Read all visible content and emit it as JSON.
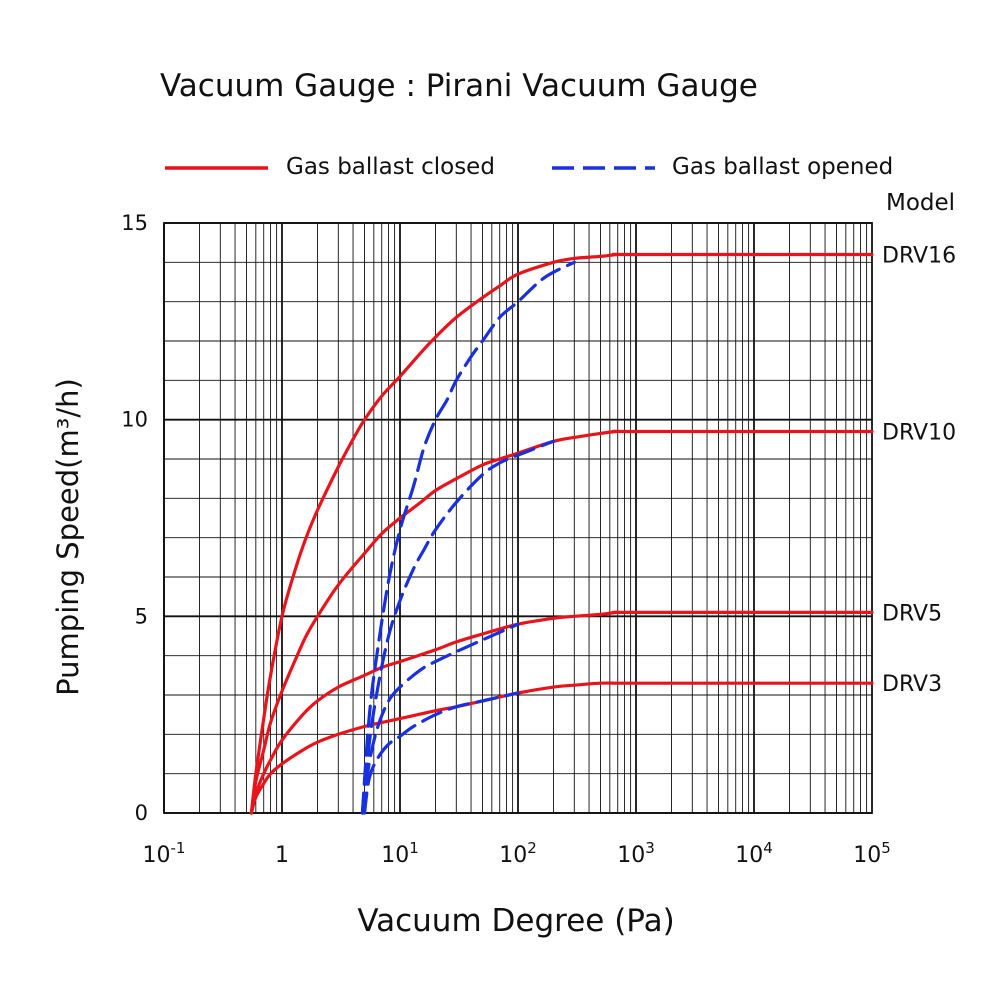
{
  "chart_data": {
    "type": "line",
    "title": "Vacuum Gauge : Pirani Vacuum Gauge",
    "xlabel": "Vacuum Degree (Pa)",
    "ylabel": "Pumping Speed(m³/h)",
    "x_scale": "log",
    "xlim": [
      0.1,
      100000
    ],
    "ylim": [
      0,
      15
    ],
    "x_ticks": [
      {
        "value": 0.1,
        "base": "10",
        "exp": "-1"
      },
      {
        "value": 1,
        "base": "1",
        "exp": ""
      },
      {
        "value": 10,
        "base": "10",
        "exp": "1"
      },
      {
        "value": 100,
        "base": "10",
        "exp": "2"
      },
      {
        "value": 1000,
        "base": "10",
        "exp": "3"
      },
      {
        "value": 10000,
        "base": "10",
        "exp": "4"
      },
      {
        "value": 100000,
        "base": "10",
        "exp": "5"
      }
    ],
    "y_ticks": [
      "0",
      "5",
      "10",
      "15"
    ],
    "grid": true,
    "legend": {
      "placement": "top",
      "closed_label": "Gas ballast closed",
      "opened_label": "Gas ballast opened",
      "closed_color": "#e8141b",
      "opened_color": "#1830e0"
    },
    "model_header": "Model",
    "series": [
      {
        "name": "DRV16",
        "style": "closed",
        "x": [
          0.55,
          0.6,
          0.7,
          0.8,
          1,
          1.3,
          1.6,
          2,
          3,
          4,
          5,
          7,
          10,
          15,
          20,
          30,
          50,
          70,
          100,
          200,
          300,
          500,
          700,
          1000,
          100000
        ],
        "y": [
          0,
          1.0,
          2.4,
          3.5,
          5.0,
          6.2,
          7.0,
          7.7,
          8.8,
          9.5,
          10.0,
          10.6,
          11.1,
          11.7,
          12.1,
          12.6,
          13.1,
          13.4,
          13.7,
          14.0,
          14.1,
          14.15,
          14.2,
          14.2,
          14.2
        ]
      },
      {
        "name": "DRV16",
        "style": "opened",
        "x": [
          4.8,
          5.5,
          6.5,
          8,
          10,
          13,
          16,
          20,
          25,
          30,
          40,
          50,
          70,
          100,
          150,
          200,
          300
        ],
        "y": [
          0,
          2.5,
          4.2,
          5.9,
          7.2,
          8.3,
          9.3,
          10.0,
          10.5,
          11.0,
          11.6,
          12.0,
          12.6,
          13.0,
          13.5,
          13.75,
          14.0
        ]
      },
      {
        "name": "DRV10",
        "style": "closed",
        "x": [
          0.55,
          0.6,
          0.7,
          0.8,
          1,
          1.3,
          1.6,
          2,
          3,
          5,
          7,
          10,
          15,
          20,
          30,
          50,
          70,
          100,
          200,
          300,
          500,
          700,
          1000,
          100000
        ],
        "y": [
          0,
          0.8,
          1.6,
          2.3,
          3.1,
          3.9,
          4.5,
          5.0,
          5.8,
          6.6,
          7.1,
          7.5,
          7.9,
          8.2,
          8.5,
          8.85,
          9.0,
          9.15,
          9.45,
          9.55,
          9.65,
          9.7,
          9.7,
          9.7
        ]
      },
      {
        "name": "DRV10",
        "style": "opened",
        "x": [
          4.8,
          5.5,
          6.5,
          8,
          10,
          13,
          16,
          20,
          30,
          50,
          70,
          100,
          200
        ],
        "y": [
          0,
          1.8,
          3.2,
          4.5,
          5.4,
          6.2,
          6.7,
          7.2,
          7.9,
          8.6,
          8.9,
          9.1,
          9.45
        ]
      },
      {
        "name": "DRV5",
        "style": "closed",
        "x": [
          0.55,
          0.6,
          0.7,
          0.8,
          1,
          1.5,
          2,
          3,
          5,
          7,
          10,
          20,
          30,
          50,
          100,
          200,
          300,
          500,
          700,
          1000,
          100000
        ],
        "y": [
          0,
          0.5,
          1.0,
          1.35,
          1.85,
          2.5,
          2.85,
          3.2,
          3.5,
          3.7,
          3.85,
          4.15,
          4.35,
          4.55,
          4.8,
          4.95,
          5.0,
          5.05,
          5.1,
          5.1,
          5.1
        ]
      },
      {
        "name": "DRV5",
        "style": "opened",
        "x": [
          4.8,
          5.5,
          6.5,
          8,
          10,
          13,
          16,
          20,
          30,
          50,
          100
        ],
        "y": [
          0,
          1.3,
          2.2,
          2.85,
          3.2,
          3.5,
          3.7,
          3.85,
          4.1,
          4.4,
          4.8
        ]
      },
      {
        "name": "DRV3",
        "style": "closed",
        "x": [
          0.55,
          0.6,
          0.7,
          0.8,
          1,
          1.5,
          2,
          3,
          5,
          7,
          10,
          20,
          30,
          50,
          100,
          200,
          300,
          500,
          700,
          1000,
          100000
        ],
        "y": [
          0,
          0.4,
          0.75,
          1.0,
          1.25,
          1.6,
          1.8,
          2.0,
          2.2,
          2.3,
          2.4,
          2.6,
          2.7,
          2.85,
          3.05,
          3.2,
          3.25,
          3.3,
          3.3,
          3.3,
          3.3
        ]
      },
      {
        "name": "DRV3",
        "style": "opened",
        "x": [
          5,
          5.5,
          6.5,
          8,
          10,
          13,
          20,
          30,
          50,
          100
        ],
        "y": [
          0,
          0.9,
          1.4,
          1.75,
          1.95,
          2.2,
          2.5,
          2.7,
          2.85,
          3.05
        ]
      }
    ],
    "model_labels": [
      {
        "text": "DRV16",
        "y": 14.2
      },
      {
        "text": "DRV10",
        "y": 9.7
      },
      {
        "text": "DRV5",
        "y": 5.1
      },
      {
        "text": "DRV3",
        "y": 3.3
      }
    ]
  }
}
